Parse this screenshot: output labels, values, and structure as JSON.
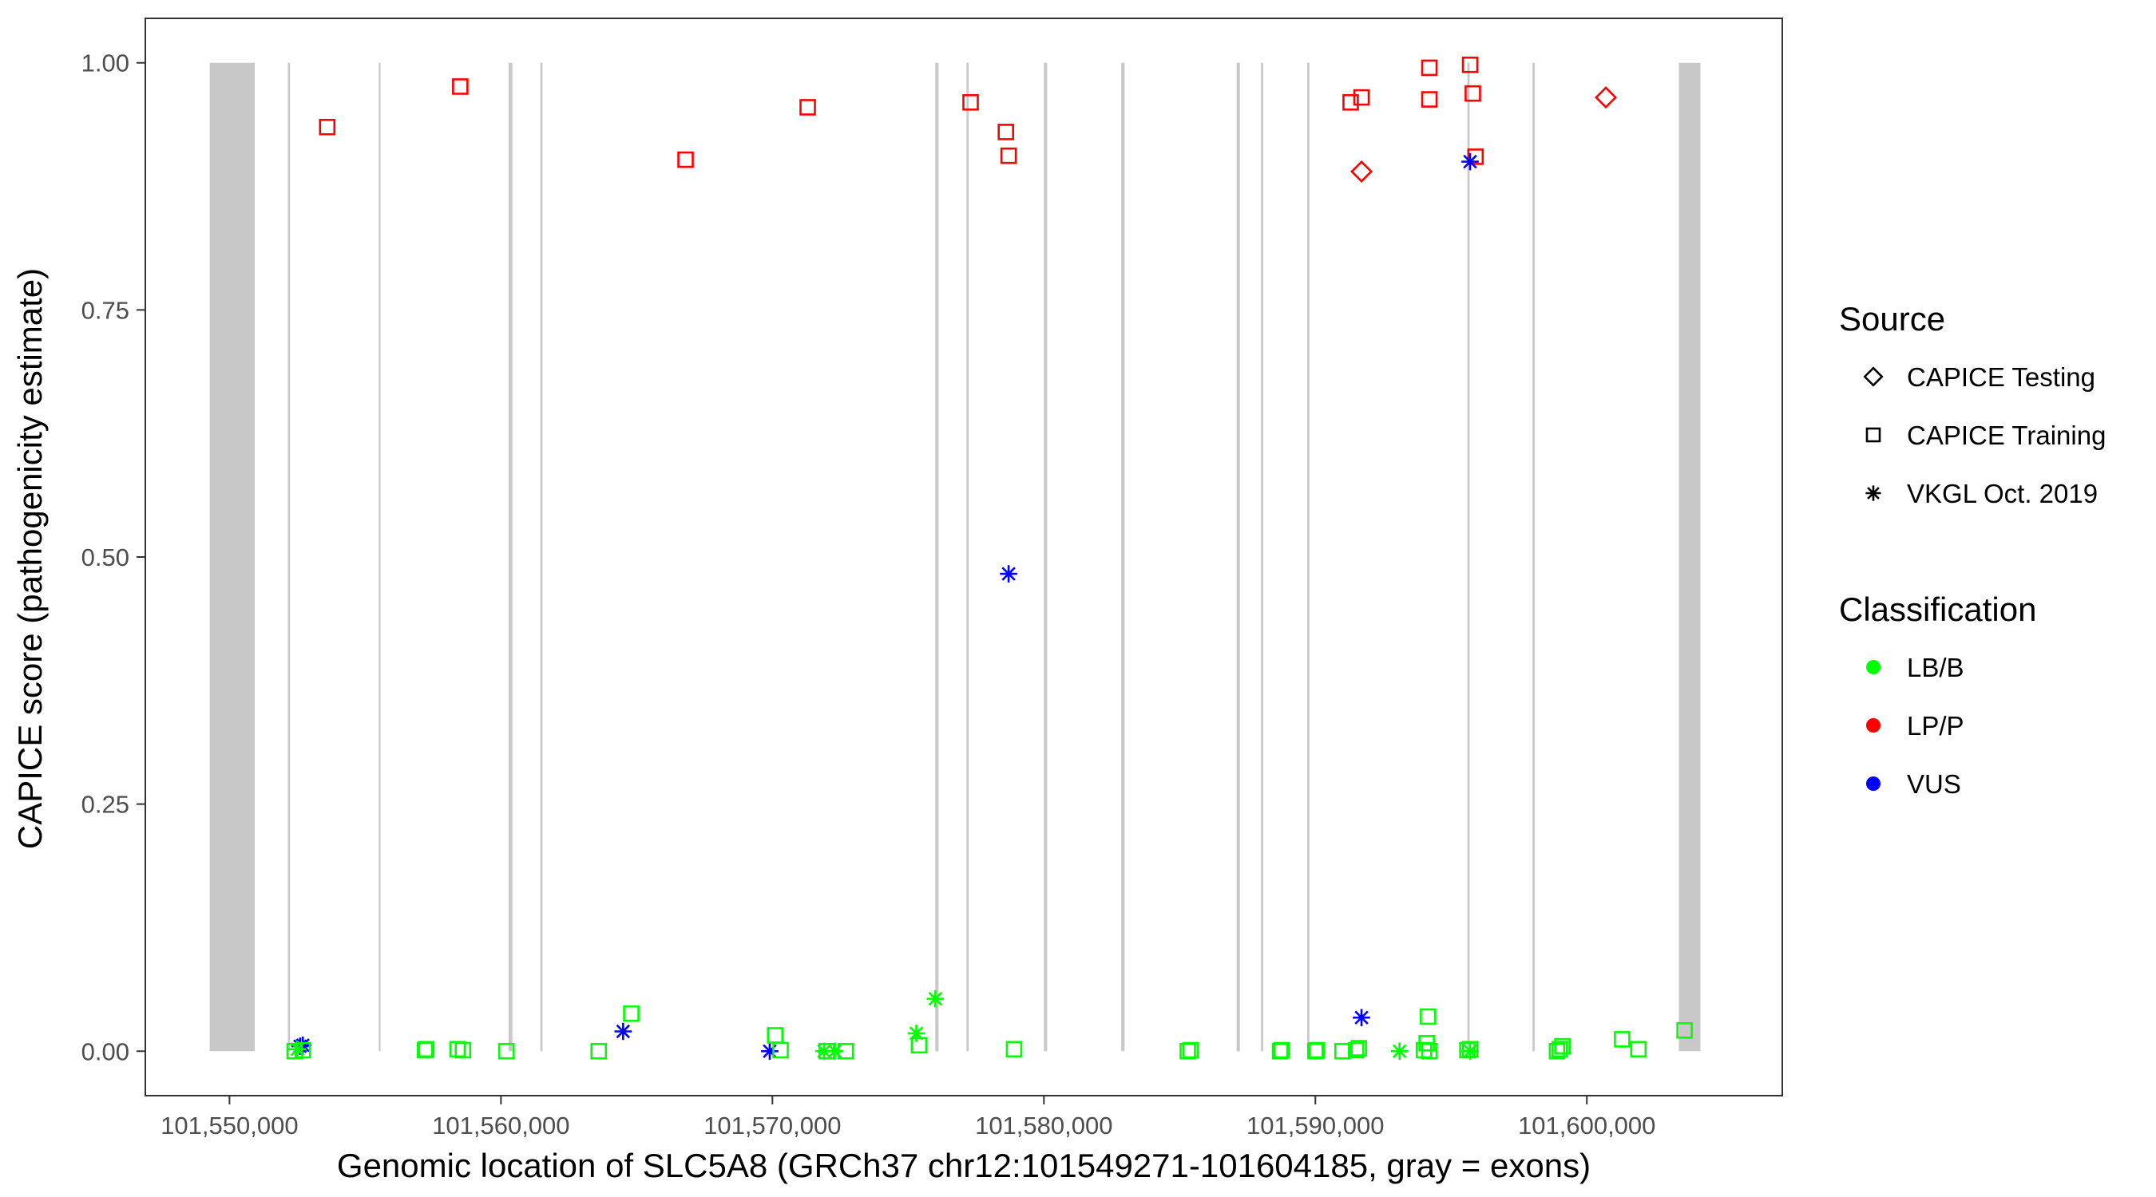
{
  "chart_data": {
    "type": "scatter",
    "title": "",
    "xlabel": "Genomic location of SLC5A8 (GRCh37 chr12:101549271-101604185, gray = exons)",
    "ylabel": "CAPICE score (pathogenicity estimate)",
    "xlim": [
      101546900,
      101607200
    ],
    "ylim": [
      -0.045,
      1.045
    ],
    "grid": false,
    "x_ticks": [
      101550000,
      101560000,
      101570000,
      101580000,
      101590000,
      101600000
    ],
    "x_tick_labels": [
      "101,550,000",
      "101,560,000",
      "101,570,000",
      "101,580,000",
      "101,590,000",
      "101,600,000"
    ],
    "y_ticks": [
      0,
      0.25,
      0.5,
      0.75,
      1.0
    ],
    "y_tick_labels": [
      "0.00",
      "0.25",
      "0.50",
      "0.75",
      "1.00"
    ],
    "exons": [
      [
        101549271,
        101550930
      ],
      [
        101552150,
        101552230
      ],
      [
        101555500,
        101555560
      ],
      [
        101560280,
        101560420
      ],
      [
        101561450,
        101561530
      ],
      [
        101576000,
        101576120
      ],
      [
        101577150,
        101577230
      ],
      [
        101580000,
        101580120
      ],
      [
        101582850,
        101582970
      ],
      [
        101587100,
        101587220
      ],
      [
        101588000,
        101588080
      ],
      [
        101589700,
        101589780
      ],
      [
        101595600,
        101595680
      ],
      [
        101598000,
        101598080
      ],
      [
        101603390,
        101604185
      ]
    ],
    "legend": {
      "position": "right",
      "source_title": "Source",
      "source_entries": [
        {
          "label": "CAPICE Testing",
          "shape": "diamond"
        },
        {
          "label": "CAPICE Training",
          "shape": "square"
        },
        {
          "label": "VKGL Oct. 2019",
          "shape": "asterisk"
        }
      ],
      "classification_title": "Classification",
      "classification_entries": [
        {
          "label": "LB/B",
          "color": "#00ff00"
        },
        {
          "label": "LP/P",
          "color": "#ff0000"
        },
        {
          "label": "VUS",
          "color": "#0000ff"
        }
      ]
    },
    "colors": {
      "LB/B": "#00ff00",
      "LP/P": "#ff0000",
      "VUS": "#0000ff",
      "exon": "#c8c8c8"
    },
    "series": [
      {
        "source": "CAPICE Training",
        "classification": "LP/P",
        "shape": "square",
        "color": "#ff0000",
        "points": [
          [
            101553600,
            0.935
          ],
          [
            101558500,
            0.976
          ],
          [
            101566800,
            0.902
          ],
          [
            101571300,
            0.955
          ],
          [
            101577300,
            0.96
          ],
          [
            101578600,
            0.93
          ],
          [
            101578700,
            0.906
          ],
          [
            101591300,
            0.96
          ],
          [
            101591700,
            0.965
          ],
          [
            101594200,
            0.995
          ],
          [
            101594200,
            0.963
          ],
          [
            101595700,
            0.998
          ],
          [
            101595800,
            0.969
          ],
          [
            101595900,
            0.905
          ]
        ]
      },
      {
        "source": "CAPICE Testing",
        "classification": "LP/P",
        "shape": "diamond",
        "color": "#ff0000",
        "points": [
          [
            101591700,
            0.89
          ],
          [
            101600700,
            0.965
          ]
        ]
      },
      {
        "source": "VKGL Oct. 2019",
        "classification": "VUS",
        "shape": "asterisk",
        "color": "#0000ff",
        "points": [
          [
            101552600,
            0.005
          ],
          [
            101552700,
            0.006
          ],
          [
            101564500,
            0.02
          ],
          [
            101569900,
            0.0
          ],
          [
            101578700,
            0.483
          ],
          [
            101591700,
            0.034
          ],
          [
            101595700,
            0.9
          ]
        ]
      },
      {
        "source": "VKGL Oct. 2019",
        "classification": "LB/B",
        "shape": "asterisk",
        "color": "#00ff00",
        "points": [
          [
            101552500,
            0.002
          ],
          [
            101571900,
            0.0
          ],
          [
            101572300,
            0.0
          ],
          [
            101575300,
            0.018
          ],
          [
            101576000,
            0.053
          ],
          [
            101593100,
            0.0
          ],
          [
            101595700,
            0.0
          ]
        ]
      },
      {
        "source": "CAPICE Training",
        "classification": "LB/B",
        "shape": "square",
        "color": "#00ff00",
        "points": [
          [
            101552400,
            0.0
          ],
          [
            101552700,
            0.001
          ],
          [
            101557200,
            0.001
          ],
          [
            101557250,
            0.002
          ],
          [
            101558400,
            0.002
          ],
          [
            101558600,
            0.001
          ],
          [
            101560200,
            0.0
          ],
          [
            101563600,
            0.0
          ],
          [
            101564800,
            0.038
          ],
          [
            101570100,
            0.016
          ],
          [
            101570300,
            0.001
          ],
          [
            101572000,
            0.0
          ],
          [
            101572700,
            0.0
          ],
          [
            101575400,
            0.006
          ],
          [
            101578900,
            0.002
          ],
          [
            101585300,
            0.0
          ],
          [
            101585400,
            0.001
          ],
          [
            101588700,
            0.0
          ],
          [
            101588750,
            0.001
          ],
          [
            101590000,
            0.0
          ],
          [
            101590050,
            0.001
          ],
          [
            101591000,
            0.0
          ],
          [
            101591500,
            0.001
          ],
          [
            101591600,
            0.003
          ],
          [
            101594000,
            0.001
          ],
          [
            101594100,
            0.008
          ],
          [
            101594150,
            0.035
          ],
          [
            101594200,
            0.0
          ],
          [
            101595600,
            0.001
          ],
          [
            101595700,
            0.002
          ],
          [
            101598900,
            0.0
          ],
          [
            101599000,
            0.002
          ],
          [
            101599100,
            0.005
          ],
          [
            101601300,
            0.012
          ],
          [
            101601900,
            0.002
          ],
          [
            101603600,
            0.021
          ]
        ]
      }
    ]
  }
}
